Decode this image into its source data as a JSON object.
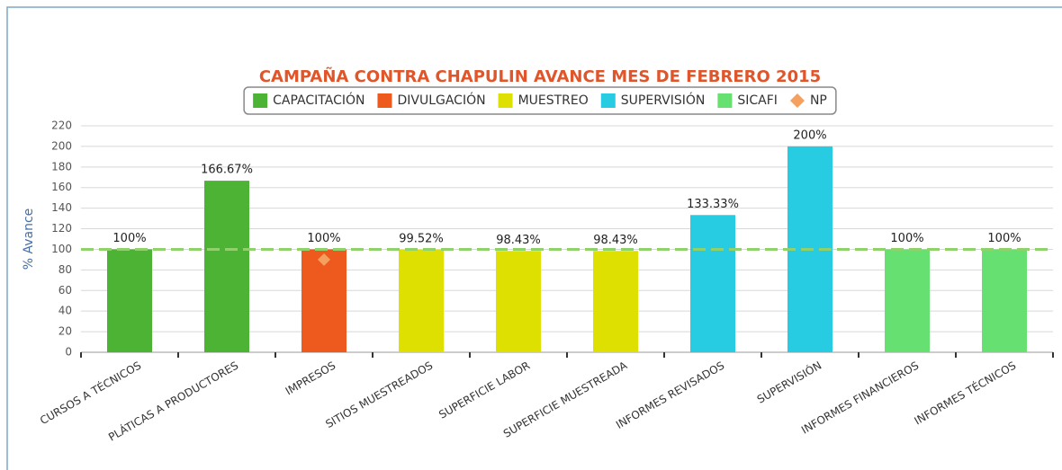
{
  "chart_data": {
    "type": "bar",
    "title": "CAMPAÑA CONTRA CHAPULIN AVANCE MES DE FEBRERO 2015",
    "y_label": "% Avance",
    "categories": [
      "CURSOS A TÉCNICOS",
      "PLÁTICAS A PRODUCTORES",
      "IMPRESOS",
      "SITIOS MUESTREADOS",
      "SUPERFICIE LABOR",
      "SUPERFICIE MUESTREADA",
      "INFORMES REVISADOS",
      "SUPERVISIÓN",
      "INFORMES FINANCIEROS",
      "INFORMES TÉCNICOS"
    ],
    "series": [
      {
        "name": "CAPACITACIÓN",
        "color": "#4db335",
        "values": [
          100,
          166.67,
          null,
          null,
          null,
          null,
          null,
          null,
          null,
          null
        ],
        "value_labels": [
          "100%",
          "166.67%",
          null,
          null,
          null,
          null,
          null,
          null,
          null,
          null
        ]
      },
      {
        "name": "DIVULGACIÓN",
        "color": "#ee5a1e",
        "values": [
          null,
          null,
          100,
          null,
          null,
          null,
          null,
          null,
          null,
          null
        ],
        "value_labels": [
          null,
          null,
          "100%",
          null,
          null,
          null,
          null,
          null,
          null,
          null
        ]
      },
      {
        "name": "MUESTREO",
        "color": "#dde000",
        "values": [
          null,
          null,
          null,
          99.52,
          98.43,
          98.43,
          null,
          null,
          null,
          null
        ],
        "value_labels": [
          null,
          null,
          null,
          "99.52%",
          "98.43%",
          "98.43%",
          null,
          null,
          null,
          null
        ]
      },
      {
        "name": "SUPERVISIÓN",
        "color": "#27cbe2",
        "values": [
          null,
          null,
          null,
          null,
          null,
          null,
          133.33,
          200,
          null,
          null
        ],
        "value_labels": [
          null,
          null,
          null,
          null,
          null,
          null,
          "133.33%",
          "200%",
          null,
          null
        ]
      },
      {
        "name": "SICAFI",
        "color": "#66e070",
        "values": [
          null,
          null,
          null,
          null,
          null,
          null,
          null,
          null,
          100,
          100
        ],
        "value_labels": [
          null,
          null,
          null,
          null,
          null,
          null,
          null,
          null,
          "100%",
          "100%"
        ]
      },
      {
        "name": "NP",
        "color": "#f5a05e",
        "type": "scatter",
        "marker": "diamond",
        "values": [
          null,
          null,
          90,
          null,
          null,
          null,
          null,
          null,
          null,
          null
        ]
      }
    ],
    "reference_line": 100,
    "reference_color": "#8fd16a",
    "ylim": [
      0,
      220
    ],
    "yticks": [
      0,
      20,
      40,
      60,
      80,
      100,
      120,
      140,
      160,
      180,
      200,
      220
    ],
    "grid": true
  }
}
